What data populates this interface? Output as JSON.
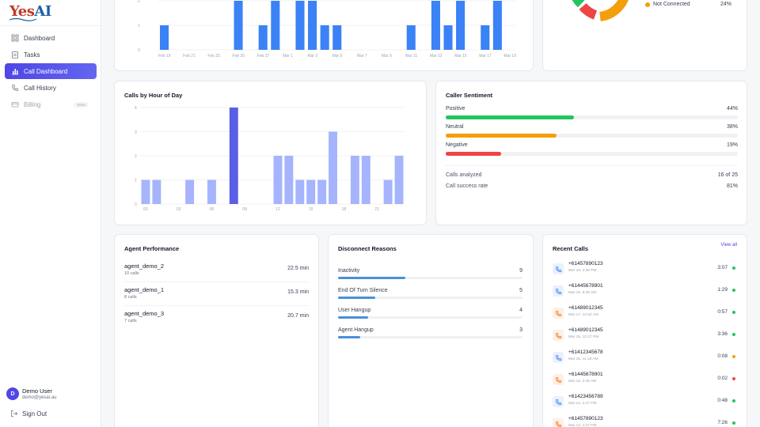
{
  "app": {
    "logo_text_1": "Yes",
    "logo_text_2": "AI"
  },
  "sidebar": {
    "items": [
      {
        "label": "Dashboard",
        "icon": "grid-icon",
        "state": "normal"
      },
      {
        "label": "Tasks",
        "icon": "clipboard-icon",
        "state": "normal"
      },
      {
        "label": "Call Dashboard",
        "icon": "bar-chart-icon",
        "state": "active"
      },
      {
        "label": "Call History",
        "icon": "phone-icon",
        "state": "normal"
      },
      {
        "label": "Billing",
        "icon": "card-icon",
        "state": "disabled",
        "badge": "Soon"
      }
    ],
    "user": {
      "initial": "D",
      "name": "Demo User",
      "email": "demo@yesai.au"
    },
    "signout_label": "Sign Out"
  },
  "colors": {
    "accent": "#4f46e5",
    "bar_blue": "#3b82f6",
    "hour_bar": "#a5b4fc",
    "hour_bar_peak": "#5b5ee6",
    "positive": "#22c55e",
    "neutral": "#f59e0b",
    "negative": "#ef4444"
  },
  "daily_chart": {
    "y_ticks": [
      "2",
      "1",
      "0"
    ],
    "x_ticks": [
      "Feb 19",
      "Feb 21",
      "Feb 23",
      "Feb 25",
      "Feb 27",
      "Mar 1",
      "Mar 3",
      "Mar 5",
      "Mar 7",
      "Mar 9",
      "Mar 11",
      "Mar 13",
      "Mar 15",
      "Mar 17",
      "Mar 19"
    ]
  },
  "status_legend": {
    "label": "Not Connected",
    "pct": "24%",
    "color": "#f59e0b"
  },
  "hour_chart": {
    "title": "Calls by Hour of Day",
    "y_ticks": [
      "4",
      "3",
      "2",
      "1",
      "0"
    ],
    "x_ticks": [
      "00",
      "03",
      "06",
      "09",
      "12",
      "15",
      "18",
      "21"
    ]
  },
  "sentiment": {
    "title": "Caller Sentiment",
    "rows": [
      {
        "label": "Positive",
        "pct": "44%",
        "value": 44
      },
      {
        "label": "Neutral",
        "pct": "38%",
        "value": 38
      },
      {
        "label": "Negative",
        "pct": "19%",
        "value": 19
      }
    ],
    "stats": [
      {
        "label": "Calls analyzed",
        "value": "16 of 25"
      },
      {
        "label": "Call success rate",
        "value": "81%"
      }
    ]
  },
  "agents": {
    "title": "Agent Performance",
    "rows": [
      {
        "name": "agent_demo_2",
        "calls": "10 calls",
        "value": "22.5 min"
      },
      {
        "name": "agent_demo_1",
        "calls": "8 calls",
        "value": "15.3 min"
      },
      {
        "name": "agent_demo_3",
        "calls": "7 calls",
        "value": "20.7 min"
      }
    ]
  },
  "disconnect": {
    "title": "Disconnect Reasons",
    "rows": [
      {
        "label": "Inactivity",
        "count": "9",
        "value": 9
      },
      {
        "label": "End Of Turn Silence",
        "count": "5",
        "value": 5
      },
      {
        "label": "User Hangup",
        "count": "4",
        "value": 4
      },
      {
        "label": "Agent Hangup",
        "count": "3",
        "value": 3
      }
    ]
  },
  "recent_calls": {
    "title": "Recent Calls",
    "view_all": "View all",
    "rows": [
      {
        "number": "+61457890123",
        "time": "Mar 19, 4:38 PM",
        "duration": "3:07",
        "dir": "blue",
        "status": "#22c55e"
      },
      {
        "number": "+61445678901",
        "time": "Mar 18, 8:38 AM",
        "duration": "1:29",
        "dir": "blue",
        "status": "#22c55e"
      },
      {
        "number": "+61489012345",
        "time": "Mar 17, 12:52 AM",
        "duration": "0:57",
        "dir": "orange",
        "status": "#22c55e"
      },
      {
        "number": "+61489012345",
        "time": "Mar 16, 12:27 PM",
        "duration": "3:36",
        "dir": "orange",
        "status": "#22c55e"
      },
      {
        "number": "+61412345678",
        "time": "Mar 15, 11:18 AM",
        "duration": "0:08",
        "dir": "blue",
        "status": "#f59e0b"
      },
      {
        "number": "+61445678901",
        "time": "Mar 15, 3:40 AM",
        "duration": "0:02",
        "dir": "orange",
        "status": "#ef4444"
      },
      {
        "number": "+61423456789",
        "time": "Mar 14, 2:47 PM",
        "duration": "0:48",
        "dir": "blue",
        "status": "#22c55e"
      },
      {
        "number": "+61457890123",
        "time": "Mar 12, 4:27 PM",
        "duration": "7:26",
        "dir": "orange",
        "status": "#22c55e"
      }
    ]
  },
  "chart_data": [
    {
      "type": "bar",
      "categories": [
        "Feb 19",
        "Feb 20",
        "Feb 21",
        "Feb 22",
        "Feb 23",
        "Feb 24",
        "Feb 25",
        "Feb 26",
        "Feb 27",
        "Feb 28",
        "Mar 1",
        "Mar 2",
        "Mar 3",
        "Mar 4",
        "Mar 5",
        "Mar 6",
        "Mar 7",
        "Mar 8",
        "Mar 9",
        "Mar 10",
        "Mar 11",
        "Mar 12",
        "Mar 13",
        "Mar 14",
        "Mar 15",
        "Mar 16",
        "Mar 17",
        "Mar 18",
        "Mar 19"
      ],
      "values": [
        1,
        0,
        0,
        0,
        0,
        0,
        2,
        0,
        1,
        2,
        0,
        2,
        2,
        1,
        1,
        0,
        0,
        0,
        0,
        0,
        1,
        0,
        2,
        1,
        2,
        0,
        1,
        2,
        0
      ],
      "ylim": [
        0,
        2
      ]
    },
    {
      "type": "bar",
      "title": "Calls by Hour of Day",
      "categories": [
        "00",
        "01",
        "02",
        "03",
        "04",
        "05",
        "06",
        "07",
        "08",
        "09",
        "10",
        "11",
        "12",
        "13",
        "14",
        "15",
        "16",
        "17",
        "18",
        "19",
        "20",
        "21",
        "22",
        "23"
      ],
      "values": [
        1,
        1,
        0,
        0,
        1,
        0,
        1,
        0,
        4,
        0,
        0,
        0,
        2,
        2,
        1,
        1,
        1,
        3,
        0,
        2,
        2,
        0,
        1,
        2
      ],
      "ylim": [
        0,
        4
      ]
    }
  ]
}
